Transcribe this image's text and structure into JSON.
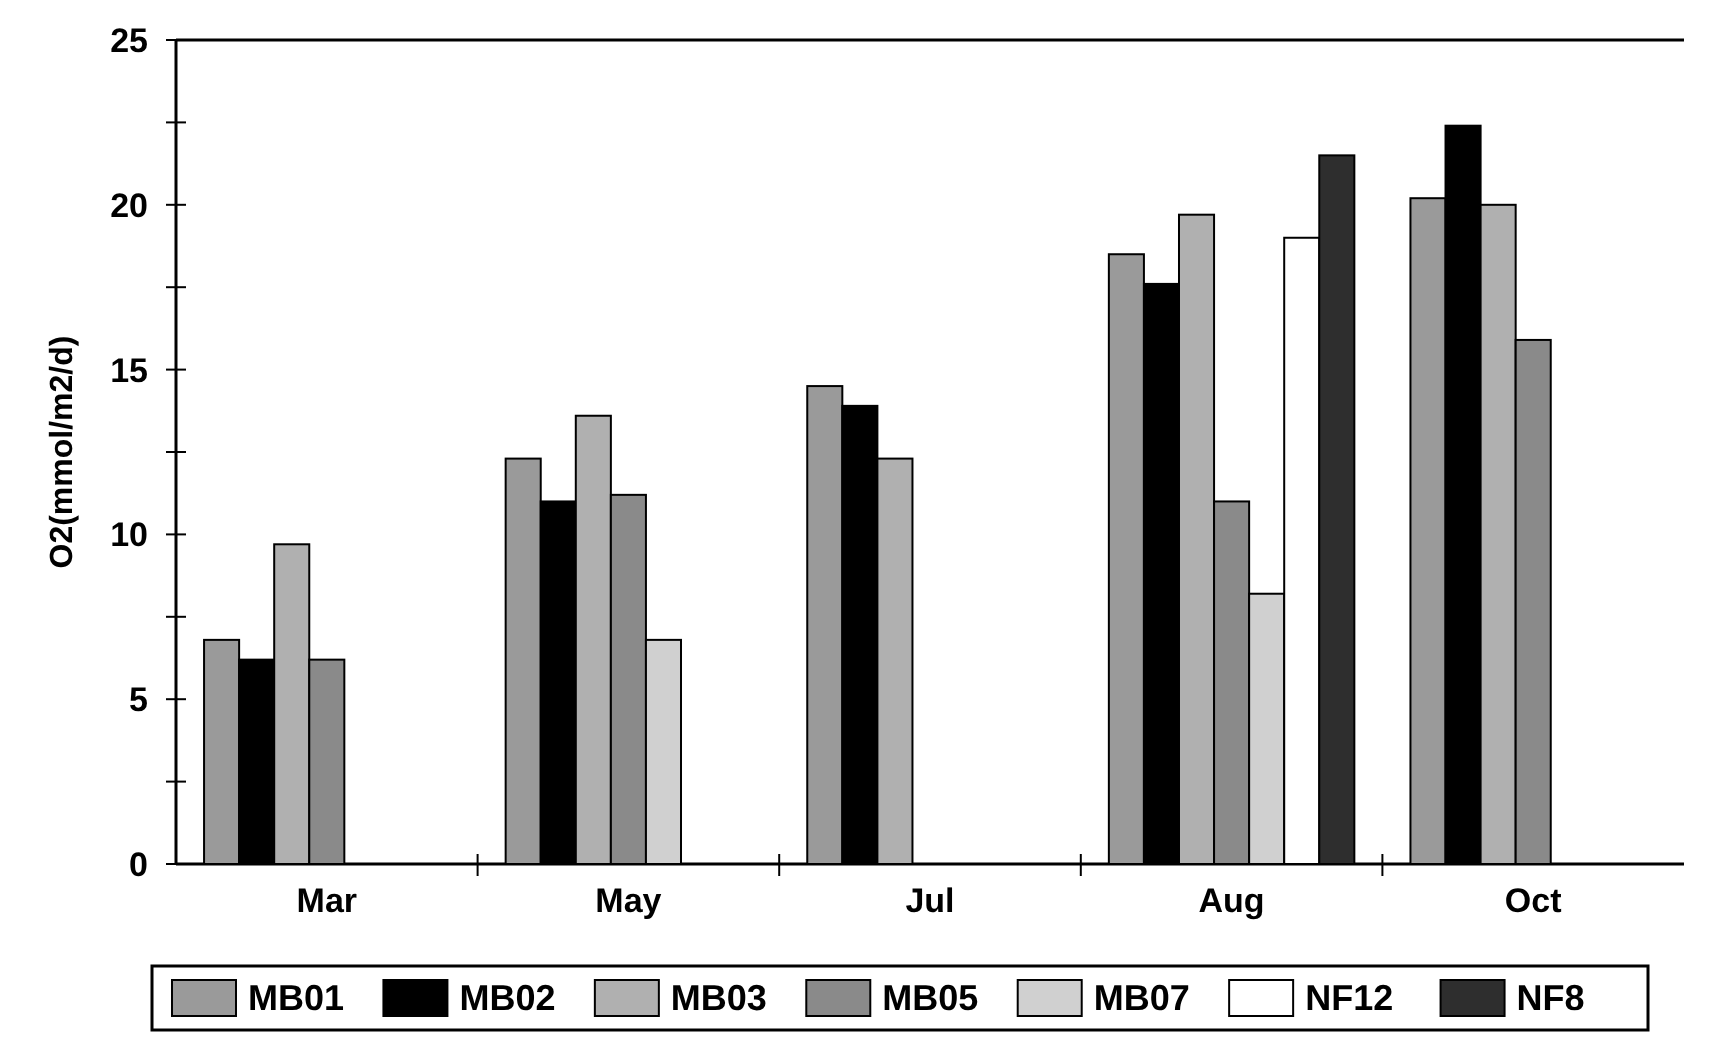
{
  "chart_data": {
    "type": "bar",
    "ylabel": "O2(mmol/m2/d)",
    "categories": [
      "Mar",
      "May",
      "Jul",
      "Aug",
      "Oct"
    ],
    "series": [
      {
        "name": "MB01",
        "color": "#9a9a9a",
        "values": [
          6.8,
          12.3,
          14.5,
          18.5,
          20.2
        ]
      },
      {
        "name": "MB02",
        "color": "#000000",
        "values": [
          6.2,
          11.0,
          13.9,
          17.6,
          22.4
        ]
      },
      {
        "name": "MB03",
        "color": "#b0b0b0",
        "values": [
          9.7,
          13.6,
          12.3,
          19.7,
          20.0
        ]
      },
      {
        "name": "MB05",
        "color": "#8a8a8a",
        "values": [
          6.2,
          11.2,
          null,
          11.0,
          15.9
        ]
      },
      {
        "name": "MB07",
        "color": "#d0d0d0",
        "values": [
          null,
          6.8,
          null,
          8.2,
          null
        ]
      },
      {
        "name": "NF12",
        "color": "#ffffff",
        "values": [
          null,
          null,
          null,
          19.0,
          null
        ]
      },
      {
        "name": "NF8",
        "color": "#2e2e2e",
        "values": [
          null,
          null,
          null,
          21.5,
          null
        ]
      }
    ],
    "ylim": [
      0,
      25
    ],
    "yticks": [
      0,
      {
        "value": 2.5,
        "label": null
      },
      5,
      {
        "value": 7.5,
        "label": null
      },
      10,
      {
        "value": 12.5,
        "label": null
      },
      15,
      {
        "value": 17.5,
        "label": null
      },
      20,
      {
        "value": 22.5,
        "label": null
      },
      25
    ],
    "legend": "bottom"
  }
}
